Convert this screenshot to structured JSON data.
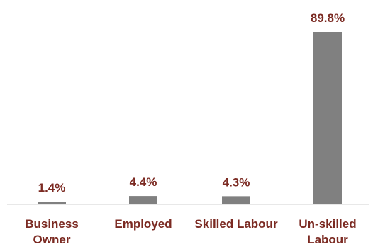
{
  "chart_data": {
    "type": "bar",
    "title": "",
    "xlabel": "",
    "ylabel": "",
    "categories": [
      [
        "Business",
        "Owner"
      ],
      [
        "Employed"
      ],
      [
        "Skilled Labour"
      ],
      [
        "Un-skilled",
        "Labour"
      ]
    ],
    "values": [
      1.4,
      4.4,
      4.3,
      89.8
    ],
    "data_labels": [
      "1.4%",
      "4.4%",
      "4.3%",
      "89.8%"
    ],
    "ylim": [
      0,
      100
    ],
    "grid": false,
    "legend": "none",
    "colors": {
      "bar": "#808080",
      "value_label": "#7b2a22",
      "category_label": "#7b2a22",
      "axis": "#d0d0d0"
    }
  }
}
